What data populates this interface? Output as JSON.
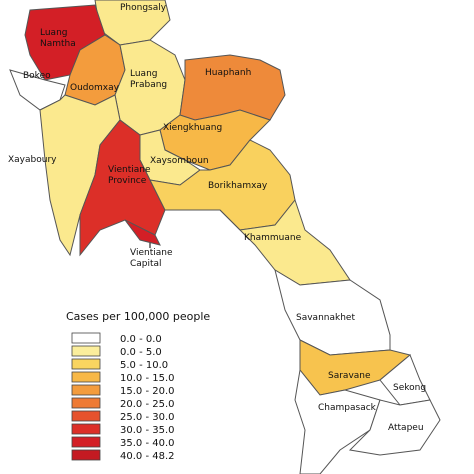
{
  "map": {
    "provinces": [
      {
        "lines": [
          "Phongsaly"
        ],
        "color": "#fbe98e"
      },
      {
        "lines": [
          "Luang",
          "Namtha"
        ],
        "color": "#d31f26"
      },
      {
        "lines": [
          "Bokeo"
        ],
        "color": "#ffffff"
      },
      {
        "lines": [
          "Oudomxay"
        ],
        "color": "#f39c3d"
      },
      {
        "lines": [
          "Luang",
          "Prabang"
        ],
        "color": "#fbe98e"
      },
      {
        "lines": [
          "Xayaboury"
        ],
        "color": "#fbe98e"
      },
      {
        "lines": [
          "Huaphanh"
        ],
        "color": "#ee8a3a"
      },
      {
        "lines": [
          "Xiengkhuang"
        ],
        "color": "#f7b847"
      },
      {
        "lines": [
          "Xaysomboun"
        ],
        "color": "#fbe98e"
      },
      {
        "lines": [
          "Vientiane",
          "Province"
        ],
        "color": "#dc2f28"
      },
      {
        "lines": [
          "Vientiane",
          "Capital"
        ],
        "color": "#d31f26"
      },
      {
        "lines": [
          "Borikhamxay"
        ],
        "color": "#f9d15e"
      },
      {
        "lines": [
          "Khammuane"
        ],
        "color": "#fbe98e"
      },
      {
        "lines": [
          "Savannakhet"
        ],
        "color": "#ffffff"
      },
      {
        "lines": [
          "Saravane"
        ],
        "color": "#f7c34e"
      },
      {
        "lines": [
          "Sekong"
        ],
        "color": "#ffffff"
      },
      {
        "lines": [
          "Champasack"
        ],
        "color": "#ffffff"
      },
      {
        "lines": [
          "Attapeu"
        ],
        "color": "#ffffff"
      }
    ],
    "legend": {
      "title": "Cases per 100,000 people",
      "items": [
        {
          "label": "0.0 - 0.0",
          "color": "#ffffff"
        },
        {
          "label": "0.0 - 5.0",
          "color": "#fbee9c"
        },
        {
          "label": "5.0 - 10.0",
          "color": "#f9d560"
        },
        {
          "label": "10.0 - 15.0",
          "color": "#f7b847"
        },
        {
          "label": "15.0 - 20.0",
          "color": "#f39c3d"
        },
        {
          "label": "20.0 - 25.0",
          "color": "#ee7a34"
        },
        {
          "label": "25.0 - 30.0",
          "color": "#e6522d"
        },
        {
          "label": "30.0 - 35.0",
          "color": "#dc2f28"
        },
        {
          "label": "35.0 - 40.0",
          "color": "#d31f26"
        },
        {
          "label": "40.0 - 48.2",
          "color": "#c41a22"
        }
      ]
    }
  }
}
